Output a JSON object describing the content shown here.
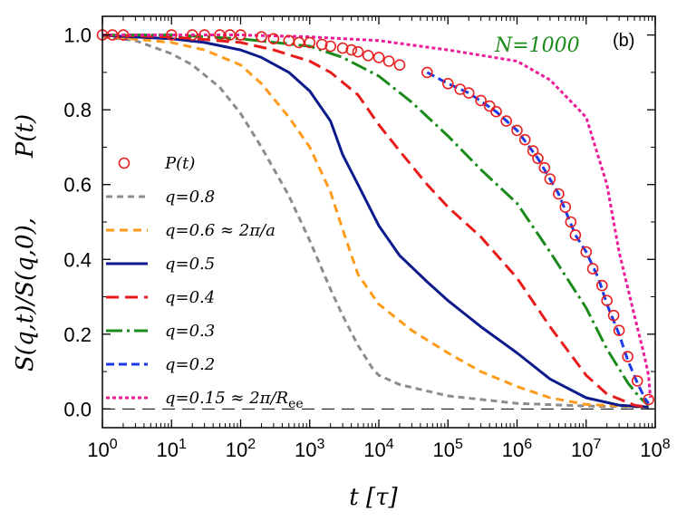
{
  "chart_data": {
    "type": "line",
    "title": "",
    "panel_label": "(b)",
    "annotation": {
      "text": "N=1000",
      "color": "#1a8a1a"
    },
    "xlabel": "t [τ]",
    "ylabel": {
      "main": "S(q,t)/S(q,0),",
      "secondary": "P(t)"
    },
    "xscale": "log",
    "xlim": [
      1,
      100000000
    ],
    "ylim": [
      -0.05,
      1.05
    ],
    "x_ticks": [
      {
        "value": 1,
        "base": "10",
        "exp": "0"
      },
      {
        "value": 10,
        "base": "10",
        "exp": "1"
      },
      {
        "value": 100,
        "base": "10",
        "exp": "2"
      },
      {
        "value": 1000,
        "base": "10",
        "exp": "3"
      },
      {
        "value": 10000,
        "base": "10",
        "exp": "4"
      },
      {
        "value": 100000,
        "base": "10",
        "exp": "5"
      },
      {
        "value": 1000000,
        "base": "10",
        "exp": "6"
      },
      {
        "value": 10000000,
        "base": "10",
        "exp": "7"
      },
      {
        "value": 100000000,
        "base": "10",
        "exp": "8"
      }
    ],
    "y_ticks": [
      "0.0",
      "0.2",
      "0.4",
      "0.6",
      "0.8",
      "1.0"
    ],
    "y_tick_values": [
      0,
      0.2,
      0.4,
      0.6,
      0.8,
      1.0
    ],
    "zero_line": true,
    "series": [
      {
        "name": "P(t)",
        "legend": "P(t)",
        "color": "#e82020",
        "style": "markers",
        "points": [
          [
            1,
            1
          ],
          [
            1.4,
            1
          ],
          [
            2,
            1
          ],
          [
            10,
            1
          ],
          [
            20,
            1
          ],
          [
            30,
            1
          ],
          [
            50,
            1
          ],
          [
            70,
            1
          ],
          [
            100,
            1
          ],
          [
            200,
            0.995
          ],
          [
            300,
            0.99
          ],
          [
            500,
            0.985
          ],
          [
            700,
            0.98
          ],
          [
            1000,
            0.98
          ],
          [
            1500,
            0.975
          ],
          [
            2000,
            0.97
          ],
          [
            3000,
            0.965
          ],
          [
            4000,
            0.96
          ],
          [
            5000,
            0.955
          ],
          [
            7000,
            0.945
          ],
          [
            10000,
            0.94
          ],
          [
            14000,
            0.93
          ],
          [
            20000,
            0.92
          ],
          [
            50000,
            0.9
          ],
          [
            100000,
            0.87
          ],
          [
            150000,
            0.855
          ],
          [
            200000,
            0.845
          ],
          [
            300000,
            0.825
          ],
          [
            400000,
            0.81
          ],
          [
            500000,
            0.795
          ],
          [
            700000,
            0.77
          ],
          [
            1000000,
            0.745
          ],
          [
            1300000,
            0.72
          ],
          [
            1700000,
            0.69
          ],
          [
            2000000,
            0.67
          ],
          [
            2500000,
            0.645
          ],
          [
            3000000,
            0.615
          ],
          [
            4000000,
            0.575
          ],
          [
            5000000,
            0.54
          ],
          [
            6000000,
            0.5
          ],
          [
            7000000,
            0.465
          ],
          [
            10000000,
            0.42
          ],
          [
            12500000,
            0.375
          ],
          [
            17000000,
            0.33
          ],
          [
            20000000,
            0.29
          ],
          [
            25000000,
            0.25
          ],
          [
            30000000,
            0.21
          ],
          [
            40000000,
            0.14
          ],
          [
            55000000,
            0.075
          ],
          [
            80000000,
            0.025
          ]
        ]
      },
      {
        "name": "q=0.8",
        "legend": "q=0.8",
        "color": "#8c8c8c",
        "dash": "7,5",
        "points": [
          [
            1,
            0.995
          ],
          [
            3,
            0.985
          ],
          [
            10,
            0.95
          ],
          [
            20,
            0.92
          ],
          [
            50,
            0.86
          ],
          [
            100,
            0.79
          ],
          [
            200,
            0.7
          ],
          [
            500,
            0.57
          ],
          [
            1000,
            0.45
          ],
          [
            2000,
            0.32
          ],
          [
            3000,
            0.25
          ],
          [
            5000,
            0.17
          ],
          [
            8000,
            0.11
          ],
          [
            10000,
            0.09
          ],
          [
            20000,
            0.065
          ],
          [
            100000,
            0.035
          ],
          [
            1000000,
            0.015
          ],
          [
            10000000,
            0.008
          ],
          [
            80000000,
            0.005
          ]
        ]
      },
      {
        "name": "q=0.6",
        "legend": "q=0.6 ≈ 2π/a",
        "color": "#ff9a1a",
        "dash": "9,6",
        "points": [
          [
            1,
            0.997
          ],
          [
            10,
            0.98
          ],
          [
            30,
            0.96
          ],
          [
            100,
            0.92
          ],
          [
            200,
            0.87
          ],
          [
            500,
            0.78
          ],
          [
            1000,
            0.7
          ],
          [
            2000,
            0.58
          ],
          [
            3000,
            0.48
          ],
          [
            5000,
            0.36
          ],
          [
            10000,
            0.28
          ],
          [
            30000,
            0.21
          ],
          [
            100000,
            0.15
          ],
          [
            300000,
            0.1
          ],
          [
            1000000,
            0.06
          ],
          [
            3000000,
            0.03
          ],
          [
            10000000,
            0.012
          ],
          [
            80000000,
            0.005
          ]
        ]
      },
      {
        "name": "q=0.5",
        "legend": "q=0.5",
        "color": "#0c1a8c",
        "dash": "",
        "points": [
          [
            1,
            0.999
          ],
          [
            10,
            0.99
          ],
          [
            30,
            0.98
          ],
          [
            100,
            0.96
          ],
          [
            200,
            0.94
          ],
          [
            500,
            0.9
          ],
          [
            1000,
            0.85
          ],
          [
            2000,
            0.77
          ],
          [
            3000,
            0.68
          ],
          [
            5000,
            0.6
          ],
          [
            10000,
            0.49
          ],
          [
            20000,
            0.41
          ],
          [
            50000,
            0.34
          ],
          [
            100000,
            0.29
          ],
          [
            300000,
            0.22
          ],
          [
            1000000,
            0.15
          ],
          [
            3000000,
            0.08
          ],
          [
            10000000,
            0.03
          ],
          [
            30000000,
            0.01
          ],
          [
            80000000,
            0.005
          ]
        ]
      },
      {
        "name": "q=0.4",
        "legend": "q=0.4",
        "color": "#e81a1a",
        "dash": "14,7",
        "points": [
          [
            1,
            1
          ],
          [
            10,
            0.995
          ],
          [
            100,
            0.98
          ],
          [
            300,
            0.96
          ],
          [
            1000,
            0.93
          ],
          [
            2000,
            0.9
          ],
          [
            5000,
            0.84
          ],
          [
            10000,
            0.76
          ],
          [
            20000,
            0.69
          ],
          [
            50000,
            0.6
          ],
          [
            100000,
            0.54
          ],
          [
            300000,
            0.46
          ],
          [
            1000000,
            0.35
          ],
          [
            3000000,
            0.22
          ],
          [
            10000000,
            0.09
          ],
          [
            20000000,
            0.04
          ],
          [
            50000000,
            0.01
          ],
          [
            80000000,
            0.005
          ]
        ]
      },
      {
        "name": "q=0.3",
        "legend": "q=0.3",
        "color": "#1a8a1a",
        "dash": "18,5,3,5",
        "points": [
          [
            1,
            1
          ],
          [
            10,
            1
          ],
          [
            100,
            0.99
          ],
          [
            1000,
            0.97
          ],
          [
            3000,
            0.94
          ],
          [
            10000,
            0.89
          ],
          [
            30000,
            0.82
          ],
          [
            100000,
            0.73
          ],
          [
            300000,
            0.64
          ],
          [
            1000000,
            0.55
          ],
          [
            3000000,
            0.42
          ],
          [
            10000000,
            0.27
          ],
          [
            20000000,
            0.16
          ],
          [
            40000000,
            0.07
          ],
          [
            60000000,
            0.03
          ],
          [
            80000000,
            0.01
          ]
        ]
      },
      {
        "name": "q=0.2",
        "legend": "q=0.2",
        "color": "#1a3ae8",
        "dash": "9,5",
        "points": [
          [
            50000,
            0.9
          ],
          [
            100000,
            0.87
          ],
          [
            200000,
            0.845
          ],
          [
            500000,
            0.795
          ],
          [
            1000000,
            0.745
          ],
          [
            2000000,
            0.67
          ],
          [
            4000000,
            0.575
          ],
          [
            7000000,
            0.465
          ],
          [
            10000000,
            0.42
          ],
          [
            15000000,
            0.35
          ],
          [
            20000000,
            0.28
          ],
          [
            30000000,
            0.2
          ],
          [
            40000000,
            0.13
          ],
          [
            55000000,
            0.07
          ],
          [
            70000000,
            0.03
          ],
          [
            80000000,
            0.015
          ]
        ]
      },
      {
        "name": "q=0.15",
        "legend": "q=0.15 ≈ 2π/R_ee",
        "color": "#ee1a9a",
        "dash": "4,3",
        "points": [
          [
            1,
            1
          ],
          [
            100,
            1
          ],
          [
            1000,
            0.995
          ],
          [
            10000,
            0.985
          ],
          [
            100000,
            0.96
          ],
          [
            1000000,
            0.93
          ],
          [
            3000000,
            0.88
          ],
          [
            10000000,
            0.78
          ],
          [
            20000000,
            0.6
          ],
          [
            30000000,
            0.42
          ],
          [
            50000000,
            0.25
          ],
          [
            70000000,
            0.14
          ],
          [
            80000000,
            0.09
          ],
          [
            85000000,
            0.03
          ]
        ]
      }
    ]
  }
}
